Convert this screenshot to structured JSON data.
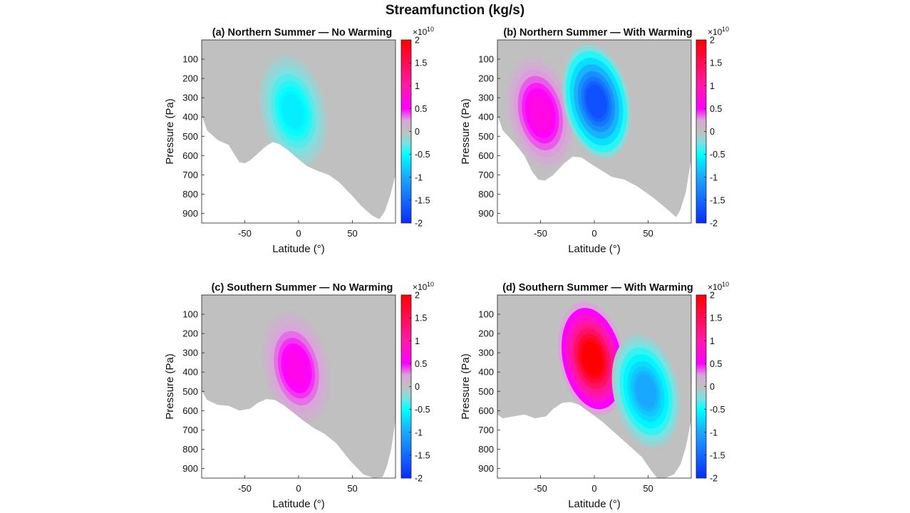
{
  "figure": {
    "title": "Streamfunction (kg/s)"
  },
  "colorscale": {
    "stops": [
      {
        "v": -2.0,
        "color": "#0a2cff"
      },
      {
        "v": -1.0,
        "color": "#1aa8ff"
      },
      {
        "v": -0.5,
        "color": "#00ffff"
      },
      {
        "v": -0.25,
        "color": "#7fe0e0"
      },
      {
        "v": 0.0,
        "color": "#c0c0c0"
      },
      {
        "v": 0.25,
        "color": "#d9a5d9"
      },
      {
        "v": 0.5,
        "color": "#ff00ff"
      },
      {
        "v": 1.0,
        "color": "#ff1aa8"
      },
      {
        "v": 2.0,
        "color": "#ff0000"
      }
    ],
    "ticks": [
      2,
      1.5,
      1,
      0.5,
      0,
      -0.5,
      -1,
      -1.5,
      -2
    ],
    "tick_labels": [
      "2",
      "1.5",
      "1",
      "0.5",
      "0",
      "-0.5",
      "-1",
      "-1.5",
      "-2"
    ],
    "exponent_label": "×10",
    "exponent_power": "10"
  },
  "chart_data": [
    {
      "type": "heatmap",
      "title": "(a) Northern Summer — No Warming",
      "xlabel": "Latitude (°)",
      "ylabel": "Pressure (Pa)",
      "xlim": [
        -90,
        90
      ],
      "ylim": [
        950,
        0
      ],
      "xticks": [
        -50,
        0,
        50
      ],
      "yticks": [
        100,
        200,
        300,
        400,
        500,
        600,
        700,
        800,
        900
      ],
      "clim": [
        -2,
        2
      ],
      "units_scale": "1e10",
      "surface_pressure": [
        [
          -90,
          390
        ],
        [
          -85,
          470
        ],
        [
          -75,
          520
        ],
        [
          -65,
          545
        ],
        [
          -60,
          590
        ],
        [
          -55,
          635
        ],
        [
          -50,
          640
        ],
        [
          -45,
          625
        ],
        [
          -38,
          590
        ],
        [
          -30,
          550
        ],
        [
          -24,
          530
        ],
        [
          -18,
          540
        ],
        [
          -10,
          570
        ],
        [
          -2,
          610
        ],
        [
          8,
          655
        ],
        [
          18,
          680
        ],
        [
          28,
          700
        ],
        [
          38,
          740
        ],
        [
          50,
          810
        ],
        [
          58,
          860
        ],
        [
          68,
          910
        ],
        [
          75,
          930
        ],
        [
          80,
          890
        ],
        [
          85,
          810
        ],
        [
          90,
          700
        ]
      ],
      "cells": [
        {
          "name": "southward cell",
          "lat": -5,
          "p": 370,
          "amplitude": -0.6
        }
      ]
    },
    {
      "type": "heatmap",
      "title": "(b) Northern Summer — With Warming",
      "xlabel": "Latitude (°)",
      "ylabel": "Pressure (Pa)",
      "xlim": [
        -90,
        90
      ],
      "ylim": [
        950,
        0
      ],
      "xticks": [
        -50,
        0,
        50
      ],
      "yticks": [
        100,
        200,
        300,
        400,
        500,
        600,
        700,
        800,
        900
      ],
      "clim": [
        -2,
        2
      ],
      "units_scale": "1e10",
      "surface_pressure": [
        [
          -90,
          390
        ],
        [
          -85,
          470
        ],
        [
          -75,
          530
        ],
        [
          -65,
          600
        ],
        [
          -58,
          680
        ],
        [
          -52,
          725
        ],
        [
          -46,
          730
        ],
        [
          -38,
          700
        ],
        [
          -28,
          640
        ],
        [
          -20,
          605
        ],
        [
          -12,
          610
        ],
        [
          -4,
          640
        ],
        [
          6,
          675
        ],
        [
          16,
          710
        ],
        [
          28,
          725
        ],
        [
          40,
          760
        ],
        [
          55,
          820
        ],
        [
          68,
          880
        ],
        [
          76,
          920
        ],
        [
          80,
          880
        ],
        [
          85,
          790
        ],
        [
          90,
          620
        ]
      ],
      "cells": [
        {
          "name": "northward cell",
          "lat": -50,
          "p": 380,
          "amplitude": 0.65
        },
        {
          "name": "southward cell",
          "lat": 2,
          "p": 320,
          "amplitude": -1.7
        }
      ]
    },
    {
      "type": "heatmap",
      "title": "(c) Southern Summer — No Warming",
      "xlabel": "Latitude (°)",
      "ylabel": "Pressure (Pa)",
      "xlim": [
        -90,
        90
      ],
      "ylim": [
        950,
        0
      ],
      "xticks": [
        -50,
        0,
        50
      ],
      "yticks": [
        100,
        200,
        300,
        400,
        500,
        600,
        700,
        800,
        900
      ],
      "clim": [
        -2,
        2
      ],
      "units_scale": "1e10",
      "surface_pressure": [
        [
          -90,
          495
        ],
        [
          -85,
          545
        ],
        [
          -75,
          570
        ],
        [
          -65,
          575
        ],
        [
          -55,
          600
        ],
        [
          -45,
          590
        ],
        [
          -38,
          560
        ],
        [
          -30,
          540
        ],
        [
          -22,
          545
        ],
        [
          -14,
          570
        ],
        [
          -6,
          605
        ],
        [
          4,
          650
        ],
        [
          14,
          690
        ],
        [
          24,
          720
        ],
        [
          35,
          770
        ],
        [
          48,
          860
        ],
        [
          60,
          930
        ],
        [
          70,
          950
        ],
        [
          78,
          945
        ],
        [
          82,
          890
        ],
        [
          86,
          800
        ],
        [
          90,
          650
        ]
      ],
      "cells": [
        {
          "name": "northward cell",
          "lat": -2,
          "p": 380,
          "amplitude": 0.6
        }
      ]
    },
    {
      "type": "heatmap",
      "title": "(d) Southern Summer — With Warming",
      "xlabel": "Latitude (°)",
      "ylabel": "Pressure (Pa)",
      "xlim": [
        -90,
        90
      ],
      "ylim": [
        950,
        0
      ],
      "xticks": [
        -50,
        0,
        50
      ],
      "yticks": [
        100,
        200,
        300,
        400,
        500,
        600,
        700,
        800,
        900
      ],
      "clim": [
        -2,
        2
      ],
      "units_scale": "1e10",
      "surface_pressure": [
        [
          -90,
          620
        ],
        [
          -85,
          640
        ],
        [
          -75,
          630
        ],
        [
          -65,
          620
        ],
        [
          -55,
          640
        ],
        [
          -45,
          630
        ],
        [
          -38,
          590
        ],
        [
          -30,
          560
        ],
        [
          -22,
          555
        ],
        [
          -14,
          570
        ],
        [
          -4,
          610
        ],
        [
          8,
          660
        ],
        [
          20,
          720
        ],
        [
          32,
          780
        ],
        [
          44,
          840
        ],
        [
          54,
          920
        ],
        [
          60,
          960
        ],
        [
          66,
          950
        ],
        [
          74,
          930
        ],
        [
          80,
          880
        ],
        [
          85,
          790
        ],
        [
          90,
          650
        ]
      ],
      "cells": [
        {
          "name": "northward cell",
          "lat": -2,
          "p": 330,
          "amplitude": 2.0
        },
        {
          "name": "southward cell",
          "lat": 48,
          "p": 500,
          "amplitude": -1.0
        }
      ]
    }
  ]
}
